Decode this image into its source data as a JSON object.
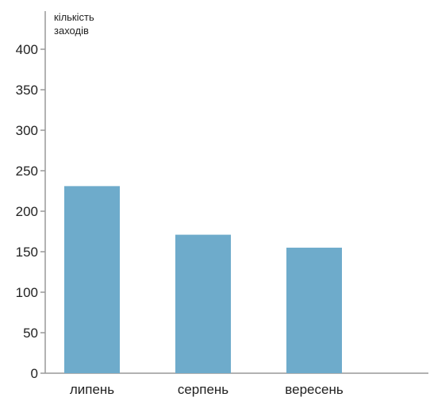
{
  "chart_data": {
    "type": "bar",
    "ylabel_lines": [
      "кількість",
      "заходів"
    ],
    "categories": [
      "липень",
      "серпень",
      "вересень"
    ],
    "values": [
      231,
      171,
      155
    ],
    "ylim": [
      0,
      400
    ],
    "yticks": [
      0,
      50,
      100,
      150,
      200,
      250,
      300,
      350,
      400
    ],
    "grid": false,
    "bar_color": "#6eabcb",
    "axis_color": "#999999",
    "text_color": "#222222"
  }
}
